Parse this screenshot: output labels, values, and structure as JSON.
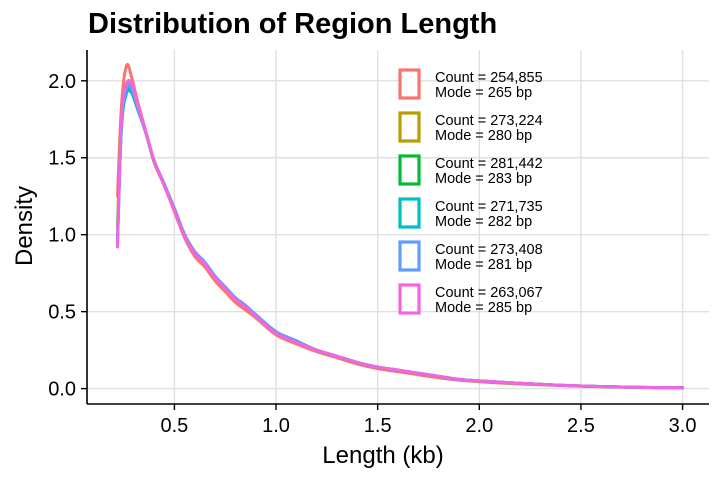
{
  "chart_data": {
    "type": "line",
    "title": "Distribution of Region Length",
    "xlabel": "Length (kb)",
    "ylabel": "Density",
    "xlim": [
      0.07,
      3.13
    ],
    "ylim": [
      -0.1,
      2.2
    ],
    "x_ticks": [
      0.5,
      1.0,
      1.5,
      2.0,
      2.5,
      3.0
    ],
    "x_tick_labels": [
      "0.5",
      "1.0",
      "1.5",
      "2.0",
      "2.5",
      "3.0"
    ],
    "y_ticks": [
      0.0,
      0.5,
      1.0,
      1.5,
      2.0
    ],
    "y_tick_labels": [
      "0.0",
      "0.5",
      "1.0",
      "1.5",
      "2.0"
    ],
    "grid": true,
    "legend_position": "top-right",
    "series": [
      {
        "color": "#F8766D",
        "legend": [
          "Count = 254,855",
          "Mode = 265 bp"
        ],
        "x": [
          0.22,
          0.24,
          0.265,
          0.29,
          0.32,
          0.36,
          0.4,
          0.45,
          0.5,
          0.55,
          0.6,
          0.65,
          0.7,
          0.75,
          0.8,
          0.85,
          0.9,
          1.0,
          1.1,
          1.2,
          1.3,
          1.4,
          1.5,
          1.6,
          1.7,
          1.8,
          1.9,
          2.0,
          2.2,
          2.4,
          2.6,
          2.8,
          3.0
        ],
        "y": [
          1.25,
          1.85,
          2.1,
          2.02,
          1.86,
          1.67,
          1.48,
          1.32,
          1.15,
          0.98,
          0.86,
          0.79,
          0.7,
          0.63,
          0.56,
          0.51,
          0.46,
          0.35,
          0.29,
          0.24,
          0.2,
          0.16,
          0.13,
          0.11,
          0.09,
          0.07,
          0.055,
          0.045,
          0.03,
          0.02,
          0.012,
          0.007,
          0.004
        ]
      },
      {
        "color": "#B79F00",
        "legend": [
          "Count = 273,224",
          "Mode = 280 bp"
        ],
        "x": [
          0.22,
          0.24,
          0.265,
          0.29,
          0.32,
          0.36,
          0.4,
          0.45,
          0.5,
          0.55,
          0.6,
          0.65,
          0.7,
          0.75,
          0.8,
          0.85,
          0.9,
          1.0,
          1.1,
          1.2,
          1.3,
          1.4,
          1.5,
          1.6,
          1.7,
          1.8,
          1.9,
          2.0,
          2.2,
          2.4,
          2.6,
          2.8,
          3.0
        ],
        "y": [
          1.05,
          1.78,
          1.97,
          1.96,
          1.83,
          1.66,
          1.47,
          1.32,
          1.16,
          0.99,
          0.88,
          0.81,
          0.72,
          0.65,
          0.58,
          0.53,
          0.47,
          0.37,
          0.3,
          0.25,
          0.21,
          0.17,
          0.14,
          0.12,
          0.1,
          0.08,
          0.06,
          0.05,
          0.035,
          0.022,
          0.014,
          0.008,
          0.005
        ]
      },
      {
        "color": "#00BA38",
        "legend": [
          "Count = 281,442",
          "Mode = 283 bp"
        ],
        "x": [
          0.22,
          0.24,
          0.265,
          0.29,
          0.32,
          0.36,
          0.4,
          0.45,
          0.5,
          0.55,
          0.6,
          0.65,
          0.7,
          0.75,
          0.8,
          0.85,
          0.9,
          1.0,
          1.1,
          1.2,
          1.3,
          1.4,
          1.5,
          1.6,
          1.7,
          1.8,
          1.9,
          2.0,
          2.2,
          2.4,
          2.6,
          2.8,
          3.0
        ],
        "y": [
          0.98,
          1.72,
          1.93,
          1.93,
          1.82,
          1.66,
          1.48,
          1.33,
          1.17,
          1.0,
          0.89,
          0.82,
          0.73,
          0.66,
          0.59,
          0.54,
          0.48,
          0.37,
          0.31,
          0.25,
          0.21,
          0.17,
          0.14,
          0.12,
          0.1,
          0.08,
          0.06,
          0.05,
          0.035,
          0.022,
          0.014,
          0.008,
          0.005
        ]
      },
      {
        "color": "#00BFC4",
        "legend": [
          "Count = 271,735",
          "Mode = 282 bp"
        ],
        "x": [
          0.22,
          0.24,
          0.265,
          0.29,
          0.32,
          0.36,
          0.4,
          0.45,
          0.5,
          0.55,
          0.6,
          0.65,
          0.7,
          0.75,
          0.8,
          0.85,
          0.9,
          1.0,
          1.1,
          1.2,
          1.3,
          1.4,
          1.5,
          1.6,
          1.7,
          1.8,
          1.9,
          2.0,
          2.2,
          2.4,
          2.6,
          2.8,
          3.0
        ],
        "y": [
          0.95,
          1.7,
          1.92,
          1.92,
          1.81,
          1.66,
          1.48,
          1.33,
          1.17,
          1.0,
          0.89,
          0.82,
          0.73,
          0.66,
          0.59,
          0.54,
          0.48,
          0.37,
          0.31,
          0.25,
          0.21,
          0.17,
          0.14,
          0.12,
          0.1,
          0.08,
          0.06,
          0.05,
          0.035,
          0.022,
          0.014,
          0.008,
          0.005
        ]
      },
      {
        "color": "#619CFF",
        "legend": [
          "Count = 273,408",
          "Mode = 281 bp"
        ],
        "x": [
          0.22,
          0.24,
          0.265,
          0.29,
          0.32,
          0.36,
          0.4,
          0.45,
          0.5,
          0.55,
          0.6,
          0.65,
          0.7,
          0.75,
          0.8,
          0.85,
          0.9,
          1.0,
          1.1,
          1.2,
          1.3,
          1.4,
          1.5,
          1.6,
          1.7,
          1.8,
          1.9,
          2.0,
          2.2,
          2.4,
          2.6,
          2.8,
          3.0
        ],
        "y": [
          0.96,
          1.74,
          1.95,
          1.95,
          1.83,
          1.66,
          1.48,
          1.33,
          1.17,
          1.0,
          0.89,
          0.82,
          0.73,
          0.66,
          0.59,
          0.54,
          0.48,
          0.37,
          0.31,
          0.25,
          0.21,
          0.17,
          0.14,
          0.12,
          0.1,
          0.08,
          0.06,
          0.05,
          0.035,
          0.022,
          0.014,
          0.008,
          0.005
        ]
      },
      {
        "color": "#F564E3",
        "legend": [
          "Count = 263,067",
          "Mode = 285 bp"
        ],
        "x": [
          0.22,
          0.24,
          0.265,
          0.29,
          0.32,
          0.36,
          0.4,
          0.45,
          0.5,
          0.55,
          0.6,
          0.65,
          0.7,
          0.75,
          0.8,
          0.85,
          0.9,
          1.0,
          1.1,
          1.2,
          1.3,
          1.4,
          1.5,
          1.6,
          1.7,
          1.8,
          1.9,
          2.0,
          2.2,
          2.4,
          2.6,
          2.8,
          3.0
        ],
        "y": [
          0.92,
          1.76,
          1.98,
          1.98,
          1.84,
          1.66,
          1.48,
          1.32,
          1.16,
          0.99,
          0.88,
          0.81,
          0.72,
          0.65,
          0.58,
          0.53,
          0.47,
          0.36,
          0.3,
          0.25,
          0.21,
          0.17,
          0.14,
          0.12,
          0.1,
          0.08,
          0.06,
          0.05,
          0.035,
          0.022,
          0.014,
          0.008,
          0.005
        ]
      }
    ]
  }
}
